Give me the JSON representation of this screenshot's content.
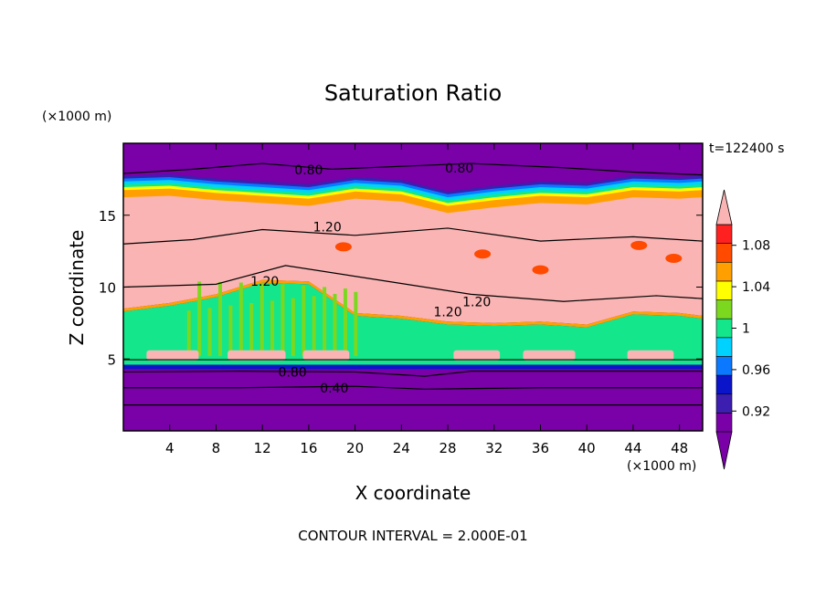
{
  "chart_data": {
    "type": "heatmap",
    "title": "Saturation Ratio",
    "xlabel": "X coordinate",
    "ylabel": "Z coordinate",
    "x_unit": "(×1000 m)",
    "y_unit": "(×1000 m)",
    "time_label": "t=122400 s",
    "footer": "CONTOUR INTERVAL = 2.000E-01",
    "xlim": [
      0,
      50
    ],
    "ylim": [
      0,
      20
    ],
    "x_ticks": [
      "4",
      "8",
      "12",
      "16",
      "20",
      "24",
      "28",
      "32",
      "36",
      "40",
      "44",
      "48"
    ],
    "y_ticks": [
      "5",
      "10",
      "15"
    ],
    "contour_labels": [
      "0.80",
      "0.80",
      "1.20",
      "1.20",
      "1.20",
      "1.20",
      "0.80",
      "0.40"
    ],
    "colorbar": {
      "tick_labels": [
        "1.08",
        "1.04",
        "1",
        "0.96",
        "0.92"
      ],
      "levels": [
        0.9,
        0.92,
        0.94,
        0.96,
        0.98,
        1.0,
        1.02,
        1.04,
        1.06,
        1.08,
        1.1
      ],
      "colors": [
        "#7a00a8",
        "#3c1eb0",
        "#0a14c8",
        "#0a78ff",
        "#00d2ff",
        "#14e68c",
        "#7cd81e",
        "#ffff00",
        "#ffa000",
        "#ff4a00",
        "#ff2020"
      ],
      "over_color": "#fab4b4",
      "under_color": "#7a00a8"
    }
  }
}
